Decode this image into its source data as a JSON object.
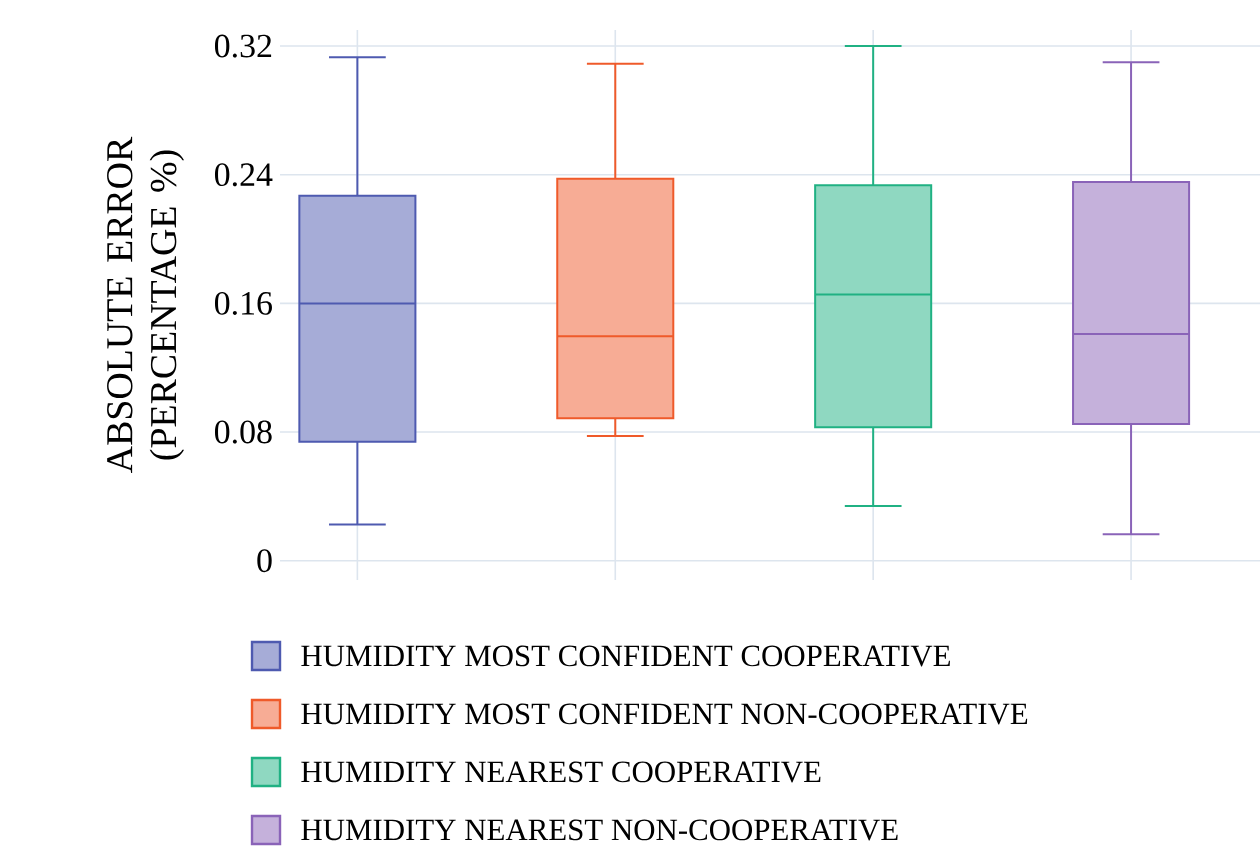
{
  "chart_data": {
    "type": "box",
    "ylabel": "ABSOLUTE ERROR (PERCENTAGE %)",
    "categories": [
      null,
      null,
      null,
      null
    ],
    "series": [
      {
        "name": "HUMIDITY MOST CONFIDENT COOPERATIVE",
        "color": "#4e5ab0",
        "boxes": [
          {
            "low": 0.0225,
            "q1": 0.074,
            "median": 0.16,
            "q3": 0.227,
            "high": 0.313
          },
          null,
          null,
          null
        ]
      },
      {
        "name": "HUMIDITY MOST CONFIDENT NON-COOPERATIVE",
        "color": "#ef5a2a",
        "boxes": [
          null,
          {
            "low": 0.0775,
            "q1": 0.0885,
            "median": 0.1395,
            "q3": 0.2375,
            "high": 0.309
          },
          null,
          null
        ]
      },
      {
        "name": "HUMIDITY NEAREST COOPERATIVE",
        "color": "#20b183",
        "boxes": [
          null,
          null,
          {
            "low": 0.034,
            "q1": 0.083,
            "median": 0.1655,
            "q3": 0.2335,
            "high": 0.32
          },
          null
        ]
      },
      {
        "name": "HUMIDITY NEAREST NON-COOPERATIVE",
        "color": "#8a63b8",
        "boxes": [
          null,
          null,
          null,
          {
            "low": 0.0165,
            "q1": 0.085,
            "median": 0.141,
            "q3": 0.2355,
            "high": 0.31
          }
        ]
      }
    ],
    "ylim": [
      -0.012,
      0.33
    ],
    "yticks": [
      0,
      0.08,
      0.16,
      0.24,
      0.32
    ],
    "grid": true,
    "legend": "bottom"
  }
}
